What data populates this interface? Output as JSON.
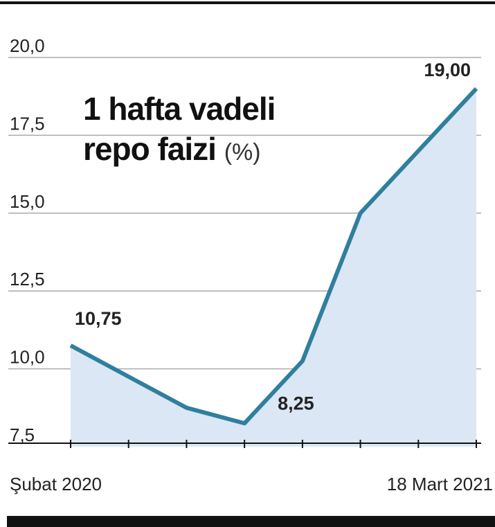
{
  "chart_data": {
    "type": "line",
    "title": "1 hafta vadeli repo faizi",
    "unit": "(%)",
    "categories": [
      "Şubat 2020",
      null,
      null,
      null,
      null,
      null,
      null,
      "18 Mart 2021"
    ],
    "values": [
      10.75,
      9.75,
      8.75,
      8.25,
      10.25,
      15.0,
      17.0,
      19.0
    ],
    "value_labels": [
      "10,75",
      null,
      null,
      "8,25",
      null,
      null,
      null,
      "19,00"
    ],
    "color": "#2f7f9e",
    "area_color": "#dbe7f4",
    "ylim": [
      7.5,
      20
    ],
    "yticks": [
      {
        "value": 7.5,
        "label": "7,5"
      },
      {
        "value": 10,
        "label": "10,0"
      },
      {
        "value": 12.5,
        "label": "12,5"
      },
      {
        "value": 15,
        "label": "15,0"
      },
      {
        "value": 17.5,
        "label": "17,5"
      },
      {
        "value": 20,
        "label": "20,0"
      }
    ],
    "grid": true
  }
}
